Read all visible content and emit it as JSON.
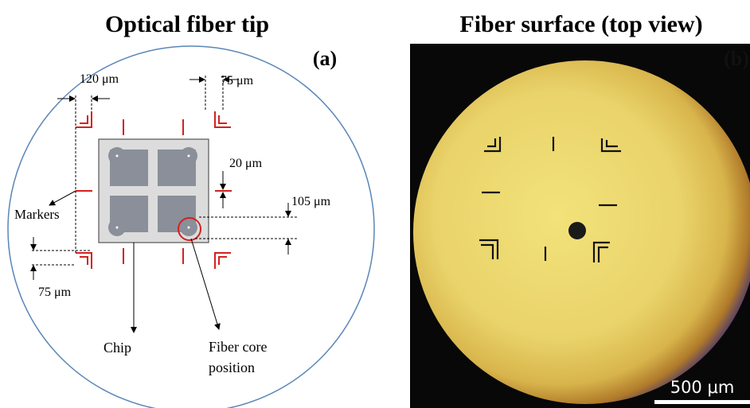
{
  "left_panel": {
    "title": "Optical fiber tip",
    "label": "(a)",
    "dimensions": [
      "120 μm",
      "75 μm",
      "20 μm",
      "105 μm",
      "75 μm"
    ],
    "annotations": {
      "markers": "Markers",
      "chip": "Chip",
      "fiber_core": [
        "Fiber core",
        "position"
      ]
    }
  },
  "right_panel": {
    "title": "Fiber surface (top view)",
    "label": "(b)",
    "scale_bar": "500 μm"
  }
}
